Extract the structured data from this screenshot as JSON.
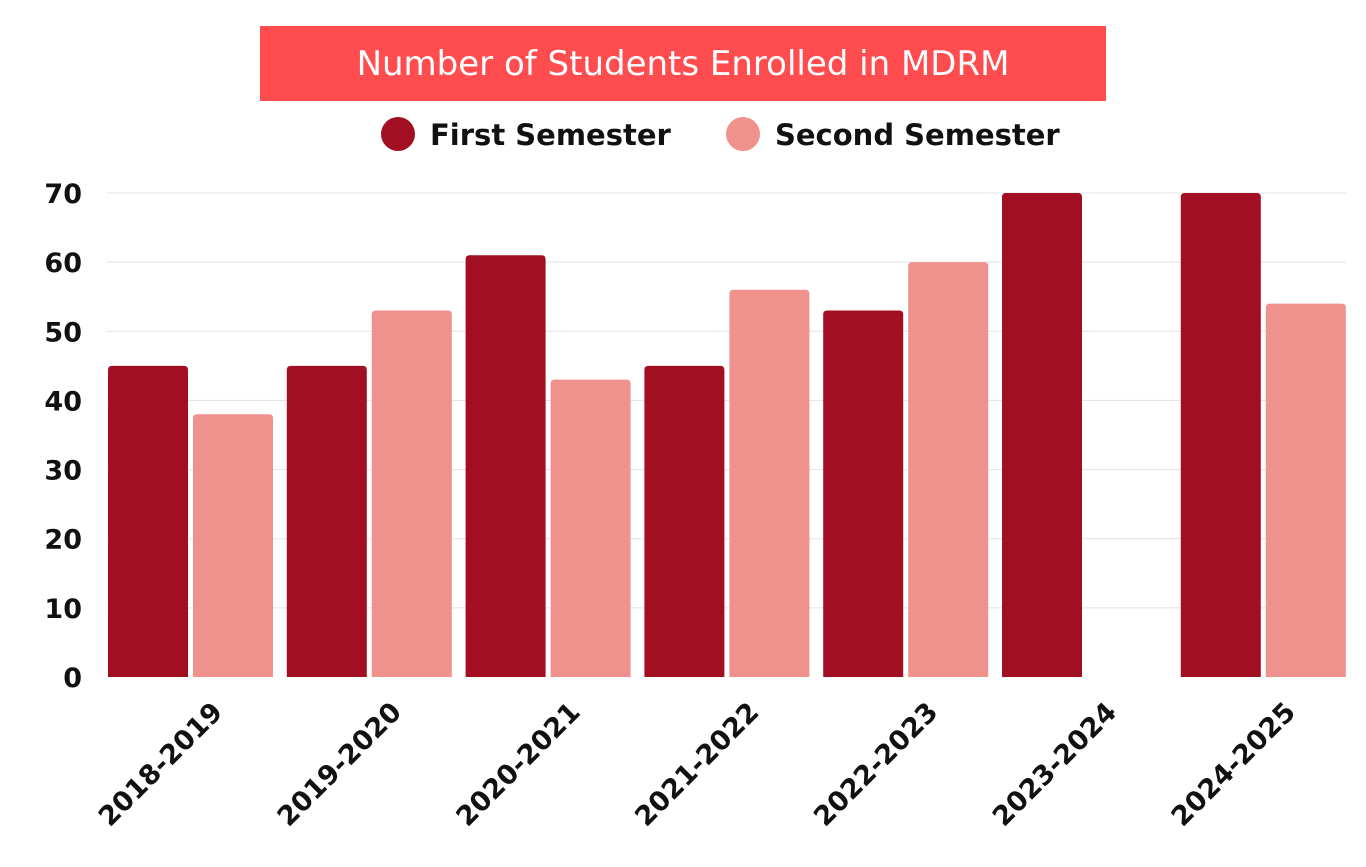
{
  "chart_data": {
    "type": "bar",
    "title": "Number of Students Enrolled in MDRM",
    "categories": [
      "2018-2019",
      "2019-2020",
      "2020-2021",
      "2021-2022",
      "2022-2023",
      "2023-2024",
      "2024-2025"
    ],
    "series": [
      {
        "name": "First Semester",
        "color": "#a20f22",
        "values": [
          45,
          45,
          61,
          45,
          53,
          70,
          70
        ]
      },
      {
        "name": "Second Semester",
        "color": "#ef918d",
        "values": [
          38,
          53,
          43,
          56,
          60,
          0,
          54
        ]
      }
    ],
    "yticks": [
      "0",
      "10",
      "20",
      "30",
      "40",
      "50",
      "60",
      "70"
    ],
    "ylim": [
      0,
      70
    ],
    "grid": true,
    "legend_position": "top-center",
    "title_background_color": "#ff4d4f",
    "xlabel": "",
    "ylabel": ""
  }
}
